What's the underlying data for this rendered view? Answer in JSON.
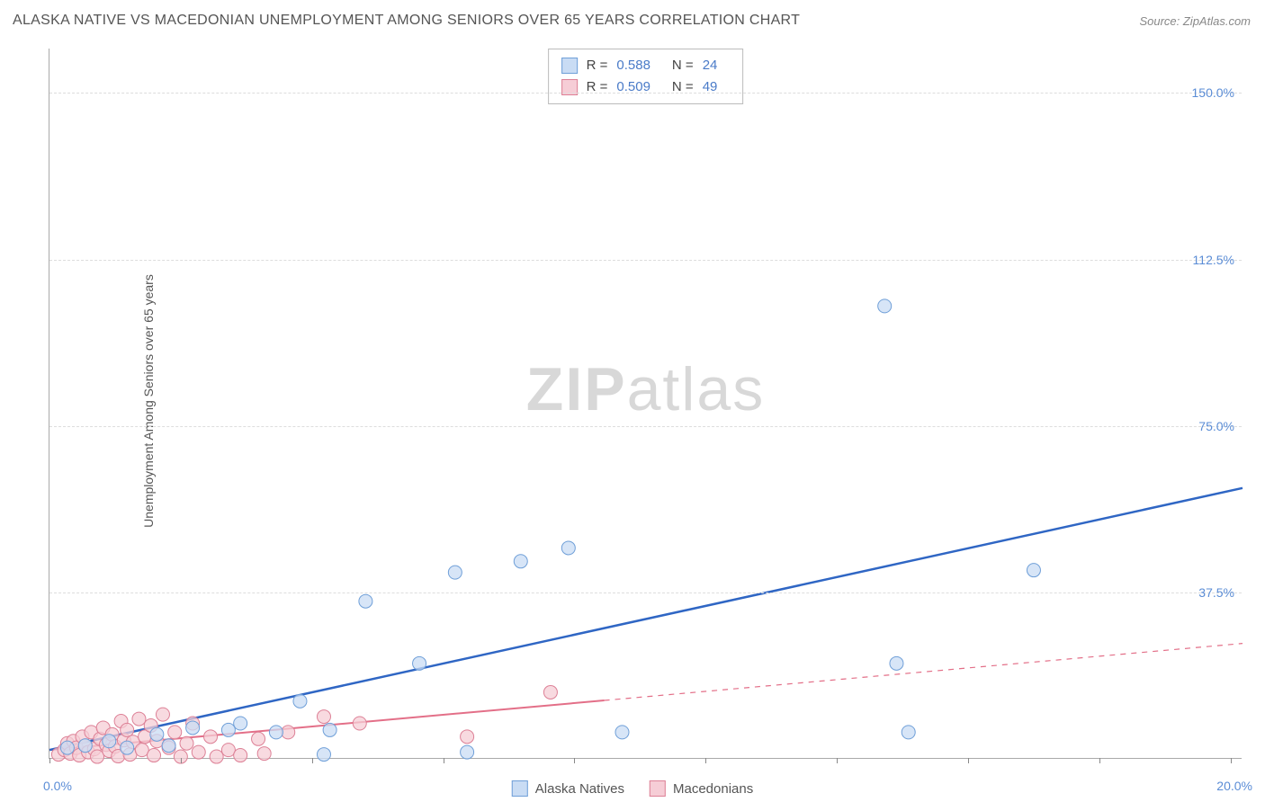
{
  "title": "ALASKA NATIVE VS MACEDONIAN UNEMPLOYMENT AMONG SENIORS OVER 65 YEARS CORRELATION CHART",
  "source": "Source: ZipAtlas.com",
  "ylabel": "Unemployment Among Seniors over 65 years",
  "watermark_zip": "ZIP",
  "watermark_atlas": "atlas",
  "chart": {
    "type": "scatter",
    "xlim": [
      0,
      20
    ],
    "ylim": [
      0,
      160
    ],
    "x_start_label": "0.0%",
    "x_end_label": "20.0%",
    "xtick_positions": [
      0,
      2.2,
      4.4,
      6.6,
      8.8,
      11.0,
      13.2,
      15.4,
      17.6,
      19.8
    ],
    "yticks": [
      {
        "v": 37.5,
        "label": "37.5%"
      },
      {
        "v": 75.0,
        "label": "75.0%"
      },
      {
        "v": 112.5,
        "label": "112.5%"
      },
      {
        "v": 150.0,
        "label": "150.0%"
      }
    ],
    "grid_color": "#dddddd",
    "background_color": "#ffffff",
    "axis_color": "#aaaaaa",
    "tick_label_color": "#5b8dd6",
    "series": [
      {
        "key": "alaska",
        "name": "Alaska Natives",
        "marker_fill": "#c9dcf4",
        "marker_stroke": "#6f9fd8",
        "line_color": "#2f66c4",
        "r_value": "0.588",
        "n_value": "24",
        "trend": {
          "x1": 0,
          "y1": 2,
          "x2": 20,
          "y2": 61,
          "solid_until_x": 20
        },
        "points": [
          {
            "x": 0.3,
            "y": 2.5
          },
          {
            "x": 0.6,
            "y": 3.0
          },
          {
            "x": 1.0,
            "y": 4.0
          },
          {
            "x": 1.3,
            "y": 2.5
          },
          {
            "x": 1.8,
            "y": 5.5
          },
          {
            "x": 2.0,
            "y": 3.0
          },
          {
            "x": 2.4,
            "y": 7.0
          },
          {
            "x": 3.0,
            "y": 6.5
          },
          {
            "x": 3.2,
            "y": 8.0
          },
          {
            "x": 3.8,
            "y": 6.0
          },
          {
            "x": 4.2,
            "y": 13.0
          },
          {
            "x": 4.6,
            "y": 1.0
          },
          {
            "x": 4.7,
            "y": 6.5
          },
          {
            "x": 5.3,
            "y": 35.5
          },
          {
            "x": 6.2,
            "y": 21.5
          },
          {
            "x": 6.8,
            "y": 42.0
          },
          {
            "x": 7.0,
            "y": 1.5
          },
          {
            "x": 7.9,
            "y": 44.5
          },
          {
            "x": 8.7,
            "y": 47.5
          },
          {
            "x": 9.6,
            "y": 6.0
          },
          {
            "x": 14.0,
            "y": 102.0
          },
          {
            "x": 14.2,
            "y": 21.5
          },
          {
            "x": 14.4,
            "y": 6.0
          },
          {
            "x": 16.5,
            "y": 42.5
          }
        ]
      },
      {
        "key": "macedonian",
        "name": "Macedonians",
        "marker_fill": "#f6cdd6",
        "marker_stroke": "#dd8096",
        "line_color": "#e36f88",
        "r_value": "0.509",
        "n_value": "49",
        "trend": {
          "x1": 0,
          "y1": 2,
          "x2": 20,
          "y2": 26,
          "solid_until_x": 9.3
        },
        "points": [
          {
            "x": 0.15,
            "y": 1.0
          },
          {
            "x": 0.25,
            "y": 2.0
          },
          {
            "x": 0.3,
            "y": 3.5
          },
          {
            "x": 0.35,
            "y": 1.2
          },
          {
            "x": 0.4,
            "y": 4.0
          },
          {
            "x": 0.45,
            "y": 2.5
          },
          {
            "x": 0.5,
            "y": 0.8
          },
          {
            "x": 0.55,
            "y": 5.0
          },
          {
            "x": 0.6,
            "y": 3.0
          },
          {
            "x": 0.65,
            "y": 1.5
          },
          {
            "x": 0.7,
            "y": 6.0
          },
          {
            "x": 0.75,
            "y": 2.2
          },
          {
            "x": 0.8,
            "y": 0.5
          },
          {
            "x": 0.85,
            "y": 4.5
          },
          {
            "x": 0.9,
            "y": 7.0
          },
          {
            "x": 0.95,
            "y": 3.2
          },
          {
            "x": 1.0,
            "y": 1.8
          },
          {
            "x": 1.05,
            "y": 5.5
          },
          {
            "x": 1.1,
            "y": 2.8
          },
          {
            "x": 1.15,
            "y": 0.6
          },
          {
            "x": 1.2,
            "y": 8.5
          },
          {
            "x": 1.25,
            "y": 4.2
          },
          {
            "x": 1.3,
            "y": 6.5
          },
          {
            "x": 1.35,
            "y": 1.0
          },
          {
            "x": 1.4,
            "y": 3.8
          },
          {
            "x": 1.5,
            "y": 9.0
          },
          {
            "x": 1.55,
            "y": 2.0
          },
          {
            "x": 1.6,
            "y": 5.0
          },
          {
            "x": 1.7,
            "y": 7.5
          },
          {
            "x": 1.75,
            "y": 0.8
          },
          {
            "x": 1.8,
            "y": 4.0
          },
          {
            "x": 1.9,
            "y": 10.0
          },
          {
            "x": 2.0,
            "y": 2.5
          },
          {
            "x": 2.1,
            "y": 6.0
          },
          {
            "x": 2.2,
            "y": 0.5
          },
          {
            "x": 2.3,
            "y": 3.5
          },
          {
            "x": 2.4,
            "y": 8.0
          },
          {
            "x": 2.5,
            "y": 1.5
          },
          {
            "x": 2.7,
            "y": 5.0
          },
          {
            "x": 2.8,
            "y": 0.5
          },
          {
            "x": 3.0,
            "y": 2.0
          },
          {
            "x": 3.2,
            "y": 0.8
          },
          {
            "x": 3.5,
            "y": 4.5
          },
          {
            "x": 3.6,
            "y": 1.2
          },
          {
            "x": 4.0,
            "y": 6.0
          },
          {
            "x": 4.6,
            "y": 9.5
          },
          {
            "x": 5.2,
            "y": 8.0
          },
          {
            "x": 7.0,
            "y": 5.0
          },
          {
            "x": 8.4,
            "y": 15.0
          }
        ]
      }
    ]
  },
  "stats_box": {
    "r_label": "R =",
    "n_label": "N ="
  },
  "legend": {
    "alaska_label": "Alaska Natives",
    "macedonian_label": "Macedonians"
  }
}
